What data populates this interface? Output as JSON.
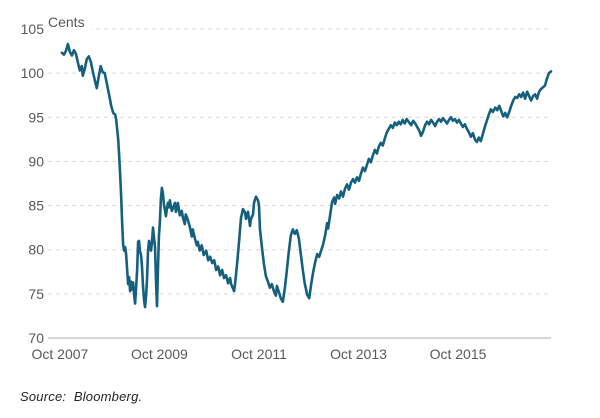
{
  "chart_data": {
    "type": "line",
    "unit_label": "Cents",
    "source_note": "Source:  Bloomberg.",
    "line_color": "#15607E",
    "grid_color": "#d9d9d9",
    "axis_line_color": "#bfbfbf",
    "tick_label_color": "#595959",
    "grid": "horizontal-dashed",
    "legend": "none",
    "ylim": [
      70,
      105
    ],
    "y_ticks": [
      70,
      75,
      80,
      85,
      90,
      95,
      100,
      105
    ],
    "xlim": [
      2007.55,
      2017.66
    ],
    "x_ticks": [
      {
        "t": 2007.79,
        "label": "Oct 2007"
      },
      {
        "t": 2009.79,
        "label": "Oct 2009"
      },
      {
        "t": 2011.79,
        "label": "Oct 2011"
      },
      {
        "t": 2013.79,
        "label": "Oct 2013"
      },
      {
        "t": 2015.79,
        "label": "Oct 2015"
      }
    ],
    "series": [
      {
        "name": "price-cents",
        "points": [
          [
            2007.83,
            102.3
          ],
          [
            2007.87,
            102.1
          ],
          [
            2007.91,
            102.5
          ],
          [
            2007.95,
            103.3
          ],
          [
            2007.99,
            102.4
          ],
          [
            2008.03,
            102.0
          ],
          [
            2008.07,
            102.6
          ],
          [
            2008.11,
            102.2
          ],
          [
            2008.15,
            101.2
          ],
          [
            2008.19,
            100.3
          ],
          [
            2008.23,
            100.8
          ],
          [
            2008.25,
            99.7
          ],
          [
            2008.29,
            100.5
          ],
          [
            2008.33,
            101.6
          ],
          [
            2008.37,
            101.9
          ],
          [
            2008.41,
            101.3
          ],
          [
            2008.45,
            100.2
          ],
          [
            2008.49,
            99.2
          ],
          [
            2008.53,
            98.3
          ],
          [
            2008.57,
            99.6
          ],
          [
            2008.61,
            100.8
          ],
          [
            2008.65,
            100.1
          ],
          [
            2008.69,
            100.0
          ],
          [
            2008.73,
            98.9
          ],
          [
            2008.78,
            97.5
          ],
          [
            2008.82,
            96.3
          ],
          [
            2008.86,
            95.5
          ],
          [
            2008.9,
            95.3
          ],
          [
            2008.92,
            94.7
          ],
          [
            2008.96,
            92.5
          ],
          [
            2008.98,
            90.8
          ],
          [
            2009.0,
            88.6
          ],
          [
            2009.02,
            86.2
          ],
          [
            2009.04,
            83.2
          ],
          [
            2009.06,
            80.6
          ],
          [
            2009.08,
            79.9
          ],
          [
            2009.1,
            80.3
          ],
          [
            2009.12,
            79.5
          ],
          [
            2009.14,
            77.8
          ],
          [
            2009.16,
            76.1
          ],
          [
            2009.18,
            76.9
          ],
          [
            2009.2,
            75.3
          ],
          [
            2009.22,
            76.4
          ],
          [
            2009.24,
            75.5
          ],
          [
            2009.26,
            76.3
          ],
          [
            2009.28,
            74.9
          ],
          [
            2009.3,
            73.9
          ],
          [
            2009.32,
            75.7
          ],
          [
            2009.34,
            77.6
          ],
          [
            2009.36,
            80.9
          ],
          [
            2009.38,
            81.0
          ],
          [
            2009.4,
            79.8
          ],
          [
            2009.42,
            79.4
          ],
          [
            2009.44,
            78.1
          ],
          [
            2009.46,
            75.9
          ],
          [
            2009.48,
            74.4
          ],
          [
            2009.5,
            73.5
          ],
          [
            2009.52,
            74.7
          ],
          [
            2009.54,
            76.6
          ],
          [
            2009.56,
            79.8
          ],
          [
            2009.58,
            81.0
          ],
          [
            2009.6,
            80.4
          ],
          [
            2009.62,
            79.9
          ],
          [
            2009.64,
            80.9
          ],
          [
            2009.66,
            82.5
          ],
          [
            2009.7,
            80.3
          ],
          [
            2009.72,
            76.5
          ],
          [
            2009.74,
            73.6
          ],
          [
            2009.76,
            78.0
          ],
          [
            2009.78,
            81.5
          ],
          [
            2009.8,
            83.2
          ],
          [
            2009.82,
            85.8
          ],
          [
            2009.84,
            87.0
          ],
          [
            2009.86,
            86.4
          ],
          [
            2009.88,
            85.2
          ],
          [
            2009.9,
            84.5
          ],
          [
            2009.92,
            83.8
          ],
          [
            2009.94,
            84.6
          ],
          [
            2009.96,
            85.3
          ],
          [
            2009.98,
            84.8
          ],
          [
            2010.0,
            85.6
          ],
          [
            2010.02,
            84.9
          ],
          [
            2010.04,
            84.4
          ],
          [
            2010.06,
            84.7
          ],
          [
            2010.1,
            85.3
          ],
          [
            2010.12,
            84.3
          ],
          [
            2010.16,
            85.3
          ],
          [
            2010.2,
            83.9
          ],
          [
            2010.24,
            84.4
          ],
          [
            2010.26,
            83.7
          ],
          [
            2010.3,
            82.9
          ],
          [
            2010.32,
            84.0
          ],
          [
            2010.36,
            83.4
          ],
          [
            2010.4,
            82.6
          ],
          [
            2010.44,
            81.5
          ],
          [
            2010.46,
            82.3
          ],
          [
            2010.5,
            81.3
          ],
          [
            2010.54,
            80.5
          ],
          [
            2010.56,
            80.9
          ],
          [
            2010.6,
            79.9
          ],
          [
            2010.64,
            80.5
          ],
          [
            2010.68,
            79.4
          ],
          [
            2010.73,
            79.9
          ],
          [
            2010.77,
            78.8
          ],
          [
            2010.81,
            79.2
          ],
          [
            2010.85,
            78.5
          ],
          [
            2010.89,
            78.8
          ],
          [
            2010.93,
            77.7
          ],
          [
            2010.97,
            78.1
          ],
          [
            2011.01,
            77.1
          ],
          [
            2011.05,
            77.7
          ],
          [
            2011.09,
            76.8
          ],
          [
            2011.13,
            77.1
          ],
          [
            2011.17,
            76.2
          ],
          [
            2011.21,
            76.8
          ],
          [
            2011.23,
            76.1
          ],
          [
            2011.27,
            75.6
          ],
          [
            2011.29,
            75.3
          ],
          [
            2011.31,
            76.2
          ],
          [
            2011.35,
            78.4
          ],
          [
            2011.39,
            81.0
          ],
          [
            2011.43,
            83.6
          ],
          [
            2011.47,
            84.6
          ],
          [
            2011.51,
            84.2
          ],
          [
            2011.53,
            83.5
          ],
          [
            2011.57,
            84.3
          ],
          [
            2011.61,
            82.7
          ],
          [
            2011.63,
            83.5
          ],
          [
            2011.67,
            84.0
          ],
          [
            2011.69,
            85.3
          ],
          [
            2011.73,
            86.0
          ],
          [
            2011.77,
            85.6
          ],
          [
            2011.79,
            85.0
          ],
          [
            2011.81,
            82.4
          ],
          [
            2011.85,
            80.3
          ],
          [
            2011.89,
            78.4
          ],
          [
            2011.93,
            77.0
          ],
          [
            2011.97,
            76.4
          ],
          [
            2012.01,
            75.7
          ],
          [
            2012.05,
            76.1
          ],
          [
            2012.09,
            75.3
          ],
          [
            2012.13,
            74.8
          ],
          [
            2012.15,
            75.9
          ],
          [
            2012.19,
            75.2
          ],
          [
            2012.23,
            74.5
          ],
          [
            2012.27,
            74.1
          ],
          [
            2012.31,
            75.6
          ],
          [
            2012.35,
            77.6
          ],
          [
            2012.39,
            79.8
          ],
          [
            2012.43,
            81.6
          ],
          [
            2012.47,
            82.3
          ],
          [
            2012.51,
            81.8
          ],
          [
            2012.55,
            82.2
          ],
          [
            2012.59,
            81.3
          ],
          [
            2012.63,
            79.6
          ],
          [
            2012.67,
            77.8
          ],
          [
            2012.71,
            76.2
          ],
          [
            2012.76,
            74.9
          ],
          [
            2012.8,
            74.5
          ],
          [
            2012.84,
            76.1
          ],
          [
            2012.88,
            77.5
          ],
          [
            2012.92,
            78.6
          ],
          [
            2012.96,
            79.5
          ],
          [
            2013.0,
            79.2
          ],
          [
            2013.04,
            79.9
          ],
          [
            2013.08,
            80.6
          ],
          [
            2013.12,
            81.6
          ],
          [
            2013.16,
            83.0
          ],
          [
            2013.18,
            82.4
          ],
          [
            2013.22,
            83.9
          ],
          [
            2013.26,
            85.4
          ],
          [
            2013.3,
            85.9
          ],
          [
            2013.32,
            85.2
          ],
          [
            2013.36,
            86.2
          ],
          [
            2013.4,
            85.8
          ],
          [
            2013.44,
            86.6
          ],
          [
            2013.48,
            86.0
          ],
          [
            2013.52,
            86.9
          ],
          [
            2013.56,
            87.4
          ],
          [
            2013.6,
            86.8
          ],
          [
            2013.64,
            87.6
          ],
          [
            2013.68,
            88.0
          ],
          [
            2013.72,
            87.6
          ],
          [
            2013.76,
            88.2
          ],
          [
            2013.8,
            87.8
          ],
          [
            2013.84,
            88.6
          ],
          [
            2013.88,
            89.3
          ],
          [
            2013.92,
            88.9
          ],
          [
            2013.96,
            89.6
          ],
          [
            2014.0,
            90.3
          ],
          [
            2014.04,
            89.9
          ],
          [
            2014.08,
            90.7
          ],
          [
            2014.12,
            91.3
          ],
          [
            2014.16,
            90.9
          ],
          [
            2014.2,
            91.7
          ],
          [
            2014.24,
            92.1
          ],
          [
            2014.28,
            91.8
          ],
          [
            2014.32,
            92.6
          ],
          [
            2014.36,
            93.3
          ],
          [
            2014.4,
            93.7
          ],
          [
            2014.44,
            94.1
          ],
          [
            2014.48,
            93.8
          ],
          [
            2014.52,
            94.4
          ],
          [
            2014.56,
            94.1
          ],
          [
            2014.6,
            94.5
          ],
          [
            2014.64,
            94.2
          ],
          [
            2014.68,
            94.7
          ],
          [
            2014.72,
            94.3
          ],
          [
            2014.76,
            94.8
          ],
          [
            2014.81,
            94.4
          ],
          [
            2014.85,
            94.1
          ],
          [
            2014.89,
            94.6
          ],
          [
            2014.93,
            94.3
          ],
          [
            2014.97,
            93.9
          ],
          [
            2015.01,
            93.5
          ],
          [
            2015.05,
            92.9
          ],
          [
            2015.09,
            93.4
          ],
          [
            2015.13,
            94.1
          ],
          [
            2015.17,
            94.5
          ],
          [
            2015.21,
            94.2
          ],
          [
            2015.25,
            94.7
          ],
          [
            2015.29,
            94.4
          ],
          [
            2015.33,
            94.0
          ],
          [
            2015.37,
            94.5
          ],
          [
            2015.41,
            94.8
          ],
          [
            2015.45,
            94.5
          ],
          [
            2015.49,
            94.9
          ],
          [
            2015.53,
            94.6
          ],
          [
            2015.57,
            94.3
          ],
          [
            2015.61,
            94.7
          ],
          [
            2015.65,
            95.0
          ],
          [
            2015.69,
            94.6
          ],
          [
            2015.73,
            94.8
          ],
          [
            2015.77,
            94.4
          ],
          [
            2015.81,
            94.7
          ],
          [
            2015.85,
            94.3
          ],
          [
            2015.89,
            93.9
          ],
          [
            2015.93,
            94.2
          ],
          [
            2015.97,
            93.7
          ],
          [
            2016.01,
            93.3
          ],
          [
            2016.05,
            92.8
          ],
          [
            2016.09,
            93.2
          ],
          [
            2016.13,
            92.5
          ],
          [
            2016.17,
            92.2
          ],
          [
            2016.21,
            92.7
          ],
          [
            2016.25,
            92.3
          ],
          [
            2016.29,
            93.1
          ],
          [
            2016.33,
            93.9
          ],
          [
            2016.37,
            94.6
          ],
          [
            2016.41,
            95.3
          ],
          [
            2016.45,
            95.9
          ],
          [
            2016.49,
            95.6
          ],
          [
            2016.54,
            96.1
          ],
          [
            2016.58,
            95.8
          ],
          [
            2016.62,
            96.3
          ],
          [
            2016.66,
            95.7
          ],
          [
            2016.7,
            95.1
          ],
          [
            2016.74,
            95.5
          ],
          [
            2016.78,
            95.0
          ],
          [
            2016.82,
            95.6
          ],
          [
            2016.86,
            96.3
          ],
          [
            2016.9,
            96.9
          ],
          [
            2016.94,
            97.3
          ],
          [
            2016.98,
            97.2
          ],
          [
            2017.02,
            97.6
          ],
          [
            2017.06,
            97.3
          ],
          [
            2017.1,
            97.8
          ],
          [
            2017.14,
            97.1
          ],
          [
            2017.18,
            97.9
          ],
          [
            2017.22,
            97.4
          ],
          [
            2017.26,
            96.9
          ],
          [
            2017.3,
            97.4
          ],
          [
            2017.34,
            97.6
          ],
          [
            2017.38,
            97.1
          ],
          [
            2017.42,
            97.9
          ],
          [
            2017.46,
            98.2
          ],
          [
            2017.5,
            98.4
          ],
          [
            2017.54,
            98.6
          ],
          [
            2017.58,
            99.4
          ],
          [
            2017.62,
            100.0
          ],
          [
            2017.66,
            100.2
          ]
        ]
      }
    ]
  }
}
